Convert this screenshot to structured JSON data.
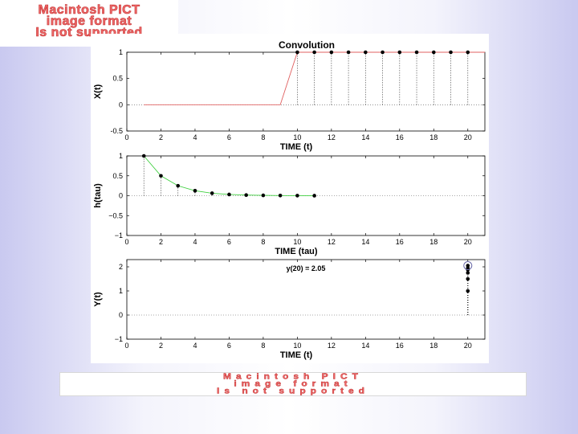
{
  "pict_notice": {
    "line1": "Macintosh PICT",
    "line2": "image format",
    "line3": "Is not supported"
  },
  "colors": {
    "x_line": "#e06060",
    "h_line": "#40d040",
    "stems": "#000000",
    "marker": "#000000",
    "circle": "#6a6aa8"
  },
  "chart_data": [
    {
      "type": "line",
      "title": "Convolution",
      "xlabel": "TIME (t)",
      "ylabel": "X(t)",
      "xlim": [
        0,
        21
      ],
      "ylim": [
        -0.5,
        1
      ],
      "xticks": [
        "0",
        "2",
        "4",
        "6",
        "8",
        "10",
        "12",
        "14",
        "16",
        "18",
        "20"
      ],
      "yticks": [
        "-0.5",
        "0",
        "0.5",
        "1"
      ],
      "ytick_values": [
        -0.5,
        0,
        0.5,
        1
      ],
      "line_x": [
        1,
        9,
        10,
        21
      ],
      "line_y": [
        0,
        0,
        1,
        1
      ],
      "stem_x": [
        10,
        11,
        12,
        13,
        14,
        15,
        16,
        17,
        18,
        19,
        20
      ],
      "stem_y": [
        1,
        1,
        1,
        1,
        1,
        1,
        1,
        1,
        1,
        1,
        1
      ],
      "grid": false
    },
    {
      "type": "line",
      "xlabel": "TIME (tau)",
      "ylabel": "h(tau)",
      "xlim": [
        0,
        21
      ],
      "ylim": [
        -1,
        1
      ],
      "xticks": [
        "0",
        "2",
        "4",
        "6",
        "8",
        "10",
        "12",
        "14",
        "16",
        "18",
        "20"
      ],
      "yticks": [
        "−1",
        "−0.5",
        "0",
        "0.5",
        "1"
      ],
      "ytick_values": [
        -1,
        -0.5,
        0,
        0.5,
        1
      ],
      "line_x": [
        1,
        2,
        3,
        4,
        5,
        6,
        7,
        8,
        9,
        10,
        11
      ],
      "line_y": [
        1,
        0.5,
        0.25,
        0.125,
        0.0625,
        0.031,
        0.016,
        0.008,
        0.004,
        0.002,
        0.001
      ],
      "stem_x": [
        1,
        2,
        3,
        4,
        5,
        6,
        7,
        8,
        9,
        10,
        11
      ],
      "stem_y": [
        1,
        0.5,
        0.25,
        0.125,
        0.0625,
        0.031,
        0.016,
        0.008,
        0.004,
        0.002,
        0.001
      ],
      "grid": false
    },
    {
      "type": "scatter",
      "xlabel": "TIME (t)",
      "ylabel": "Y(t)",
      "annotation": "y(20) = 2.05",
      "xlim": [
        0,
        21
      ],
      "ylim": [
        -1,
        2.3
      ],
      "xticks": [
        "0",
        "2",
        "4",
        "6",
        "8",
        "10",
        "12",
        "14",
        "16",
        "18",
        "20"
      ],
      "yticks": [
        "−1",
        "0",
        "1",
        "2"
      ],
      "ytick_values": [
        -1,
        0,
        1,
        2
      ],
      "stem_x": [
        20,
        20,
        20,
        20,
        20,
        20
      ],
      "stem_y": [
        1.0,
        1.5,
        1.75,
        1.88,
        1.94,
        2.05
      ],
      "highlight_point": [
        20,
        2.05
      ],
      "grid": false
    }
  ]
}
